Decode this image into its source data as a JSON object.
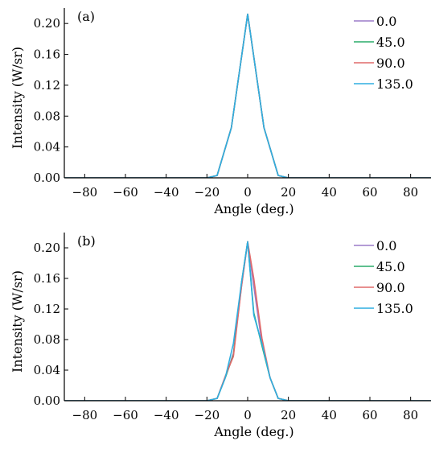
{
  "chart_data": [
    {
      "type": "line",
      "panel_label": "(a)",
      "xlabel": "Angle (deg.)",
      "ylabel": "Intensity (W/sr)",
      "xlim": [
        -90,
        90
      ],
      "ylim": [
        0,
        0.22
      ],
      "xticks": [
        -80,
        -60,
        -40,
        -20,
        0,
        20,
        40,
        60,
        80
      ],
      "xtick_labels": [
        "−80",
        "−60",
        "−40",
        "−20",
        "0",
        "20",
        "40",
        "60",
        "80"
      ],
      "yticks": [
        0.0,
        0.04,
        0.08,
        0.12,
        0.16,
        0.2
      ],
      "ytick_labels": [
        "0.00",
        "0.04",
        "0.08",
        "0.12",
        "0.16",
        "0.20"
      ],
      "grid": false,
      "legend_position": "top-right",
      "series": [
        {
          "name": "0.0",
          "color": "#9b7bc8",
          "x": [
            -90,
            -20,
            -15,
            -8,
            0,
            8,
            15,
            20,
            90
          ],
          "y": [
            0.0,
            0.0,
            0.003,
            0.065,
            0.212,
            0.065,
            0.003,
            0.0,
            0.0
          ]
        },
        {
          "name": "45.0",
          "color": "#2aab6a",
          "x": [
            -90,
            -20,
            -15,
            -8,
            0,
            8,
            15,
            20,
            90
          ],
          "y": [
            0.0,
            0.0,
            0.003,
            0.065,
            0.212,
            0.065,
            0.003,
            0.0,
            0.0
          ]
        },
        {
          "name": "90.0",
          "color": "#e06a6a",
          "x": [
            -90,
            -20,
            -15,
            -8,
            0,
            8,
            15,
            20,
            90
          ],
          "y": [
            0.0,
            0.0,
            0.003,
            0.065,
            0.212,
            0.065,
            0.003,
            0.0,
            0.0
          ]
        },
        {
          "name": "135.0",
          "color": "#2eaee0",
          "x": [
            -90,
            -20,
            -15,
            -8,
            0,
            8,
            15,
            20,
            90
          ],
          "y": [
            0.0,
            0.0,
            0.003,
            0.065,
            0.212,
            0.065,
            0.003,
            0.0,
            0.0
          ]
        }
      ]
    },
    {
      "type": "line",
      "panel_label": "(b)",
      "xlabel": "Angle (deg.)",
      "ylabel": "Intensity (W/sr)",
      "xlim": [
        -90,
        90
      ],
      "ylim": [
        0,
        0.22
      ],
      "xticks": [
        -80,
        -60,
        -40,
        -20,
        0,
        20,
        40,
        60,
        80
      ],
      "xtick_labels": [
        "−80",
        "−60",
        "−40",
        "−20",
        "0",
        "20",
        "40",
        "60",
        "80"
      ],
      "yticks": [
        0.0,
        0.04,
        0.08,
        0.12,
        0.16,
        0.2
      ],
      "ytick_labels": [
        "0.00",
        "0.04",
        "0.08",
        "0.12",
        "0.16",
        "0.20"
      ],
      "grid": false,
      "legend_position": "top-right",
      "series": [
        {
          "name": "0.0",
          "color": "#9b7bc8",
          "x": [
            -90,
            -20,
            -15,
            -11,
            -7,
            -3,
            0,
            3,
            7,
            11,
            15,
            20,
            90
          ],
          "y": [
            0.0,
            0.0,
            0.003,
            0.03,
            0.062,
            0.15,
            0.208,
            0.15,
            0.075,
            0.03,
            0.003,
            0.0,
            0.0
          ]
        },
        {
          "name": "45.0",
          "color": "#2aab6a",
          "x": [
            -90,
            -20,
            -15,
            -11,
            -7,
            -3,
            0,
            3,
            7,
            11,
            15,
            20,
            90
          ],
          "y": [
            0.0,
            0.0,
            0.003,
            0.03,
            0.06,
            0.155,
            0.208,
            0.115,
            0.072,
            0.03,
            0.003,
            0.0,
            0.0
          ]
        },
        {
          "name": "90.0",
          "color": "#e06a6a",
          "x": [
            -90,
            -20,
            -15,
            -11,
            -7,
            -3,
            0,
            3,
            7,
            11,
            15,
            20,
            90
          ],
          "y": [
            0.0,
            0.0,
            0.003,
            0.032,
            0.058,
            0.15,
            0.208,
            0.16,
            0.082,
            0.03,
            0.003,
            0.0,
            0.0
          ]
        },
        {
          "name": "135.0",
          "color": "#2eaee0",
          "x": [
            -90,
            -20,
            -15,
            -11,
            -7,
            -3,
            0,
            3,
            7,
            11,
            15,
            20,
            90
          ],
          "y": [
            0.0,
            0.0,
            0.003,
            0.03,
            0.075,
            0.155,
            0.208,
            0.112,
            0.075,
            0.03,
            0.003,
            0.0,
            0.0
          ]
        }
      ]
    }
  ]
}
